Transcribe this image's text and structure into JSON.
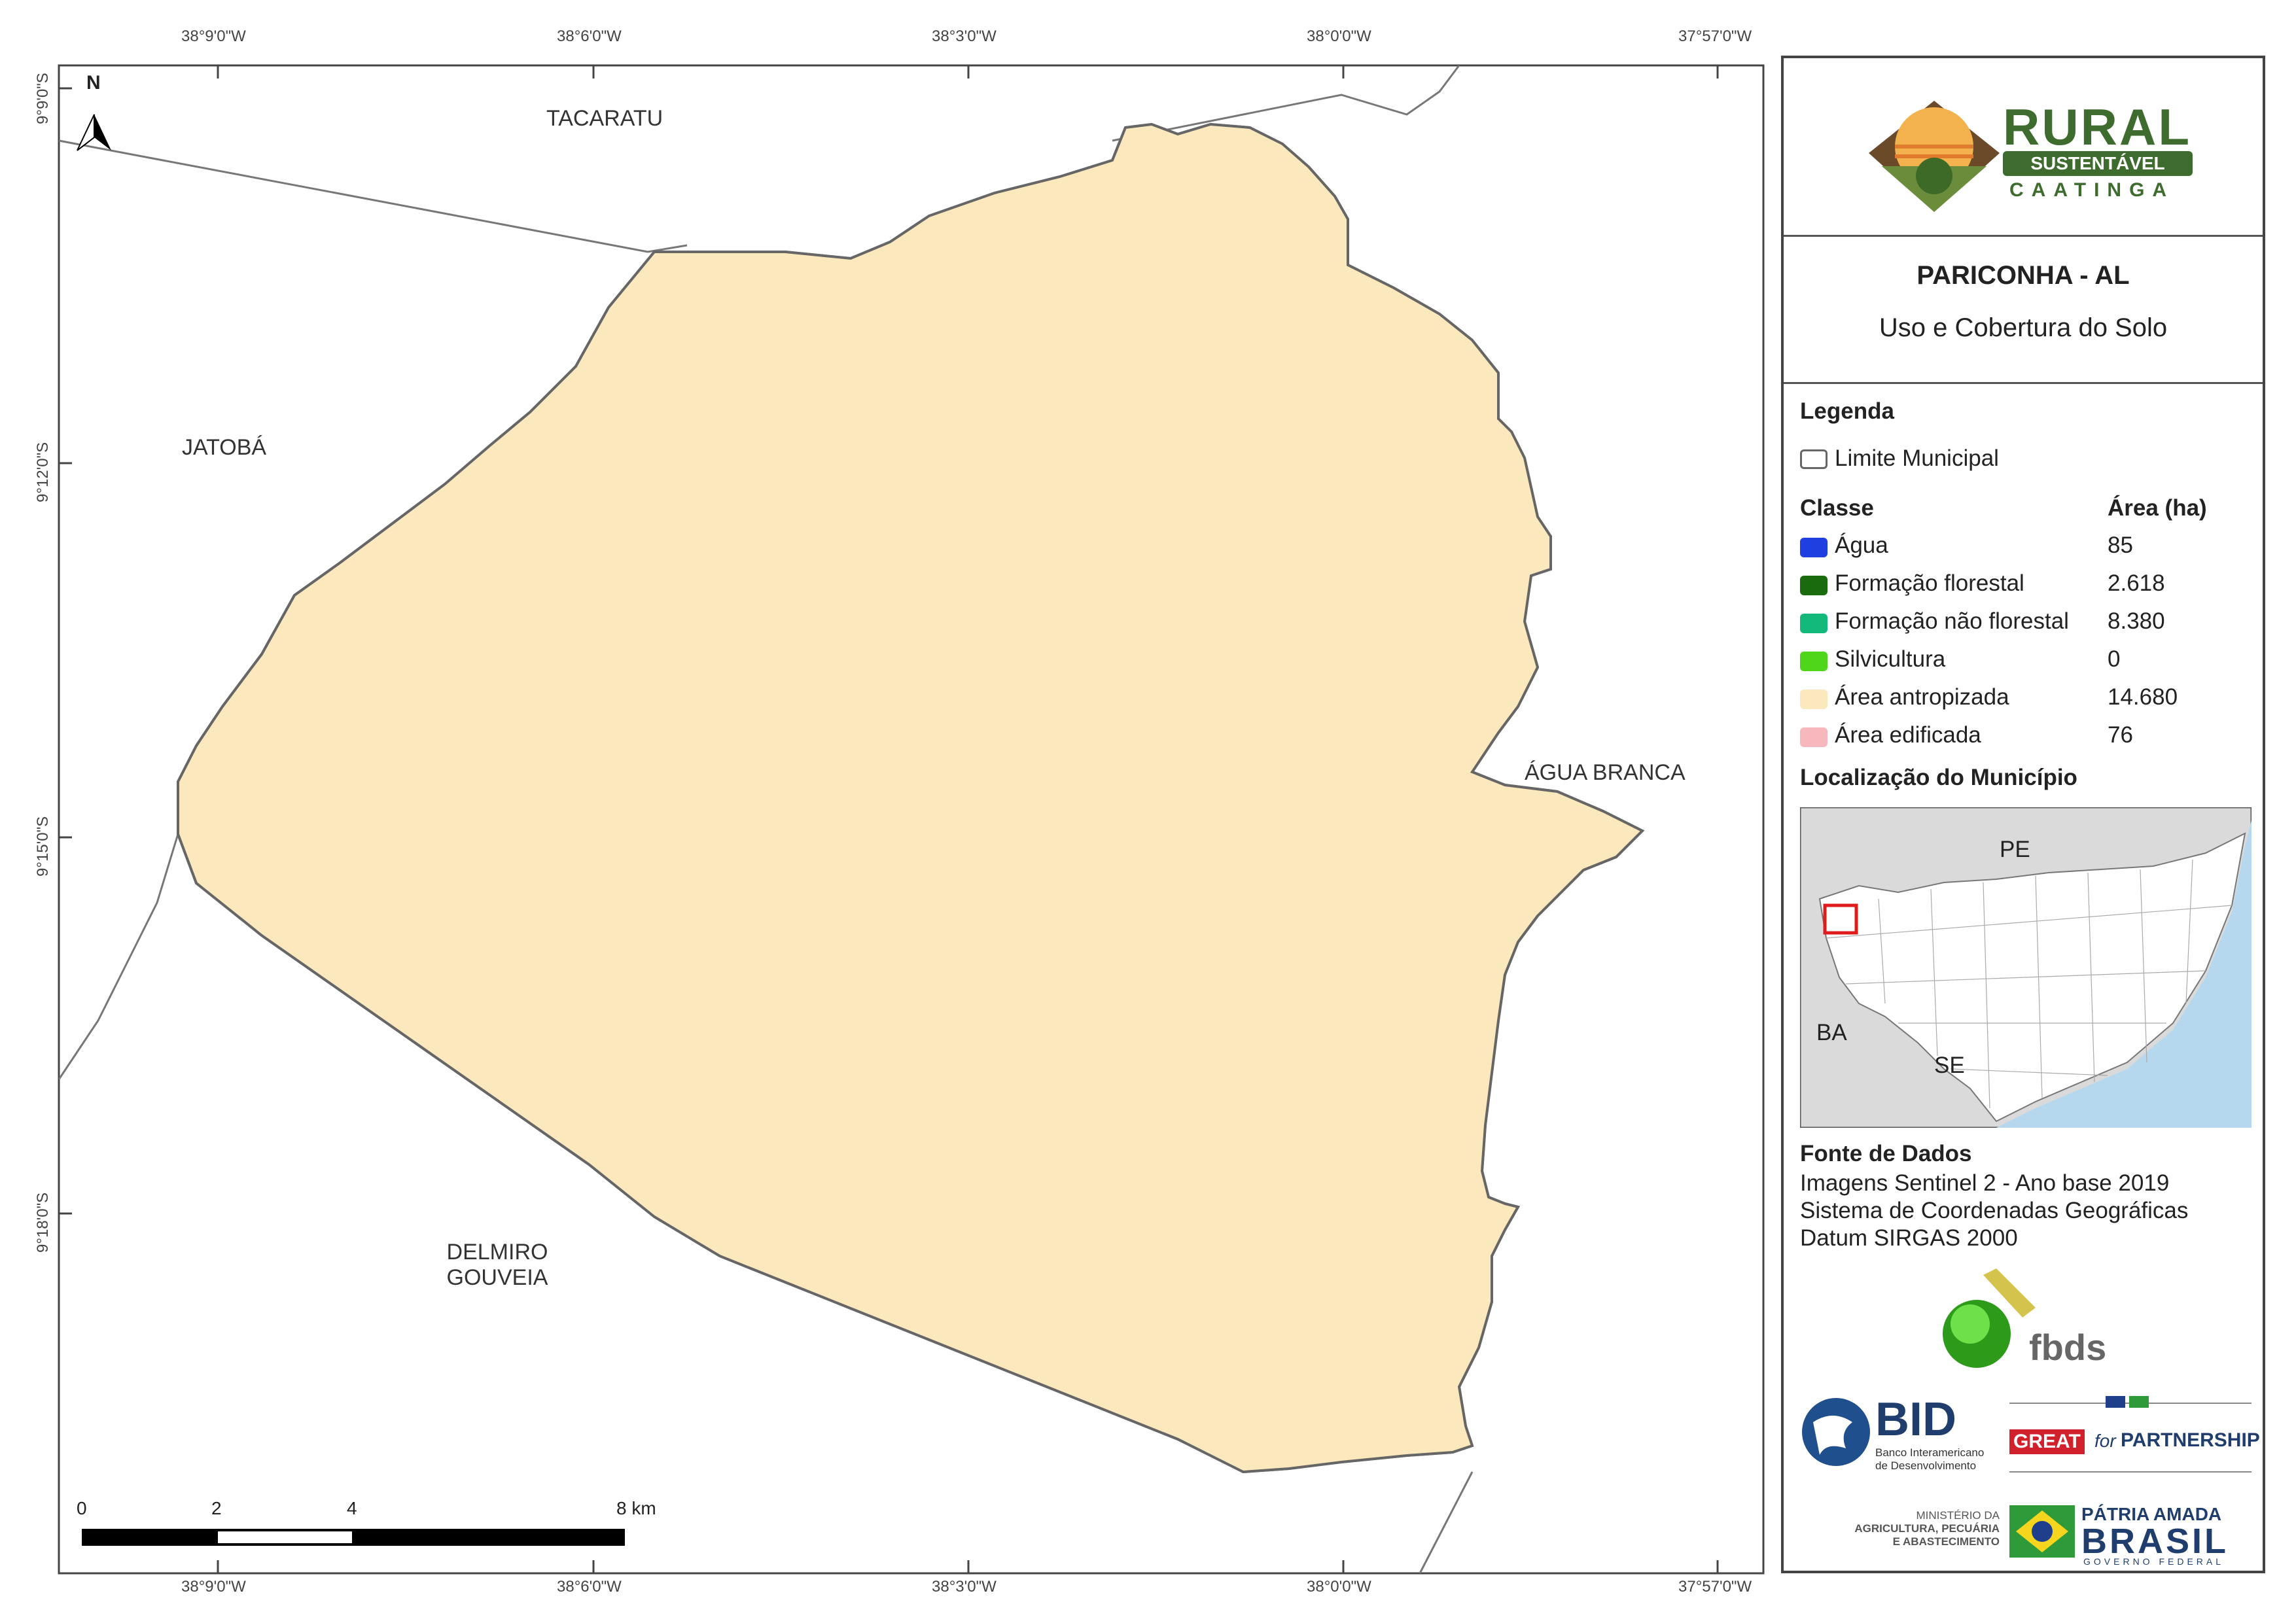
{
  "coordinates": {
    "top_lon": [
      "38°9'0\"W",
      "38°6'0\"W",
      "38°3'0\"W",
      "38°0'0\"W",
      "37°57'0\"W"
    ],
    "bottom_lon": [
      "38°9'0\"W",
      "38°6'0\"W",
      "38°3'0\"W",
      "38°0'0\"W",
      "37°57'0\"W"
    ],
    "left_lat": [
      "9°9'0\"S",
      "9°12'0\"S",
      "9°15'0\"S",
      "9°18'0\"S"
    ]
  },
  "places": {
    "tacaratu": "TACARATU",
    "jatoba": "JATOBÁ",
    "agua_branca": "ÁGUA BRANCA",
    "delmiro_1": "DELMIRO",
    "delmiro_2": "GOUVEIA"
  },
  "north_label": "N",
  "scale_bar": {
    "labels": [
      "0",
      "2",
      "4",
      "8 km"
    ]
  },
  "logo": {
    "rural": "RURAL",
    "sustentavel": "SUSTENTÁVEL",
    "caatinga": "CAATINGA"
  },
  "title": {
    "municipality": "PARICONHA - AL",
    "subtitle": "Uso e Cobertura do Solo"
  },
  "legend": {
    "heading": "Legenda",
    "limit_label": "Limite Municipal",
    "class_header": "Classe",
    "area_header": "Área (ha)",
    "classes": [
      {
        "name": "Água",
        "area": "85",
        "color": "#1f3fe0"
      },
      {
        "name": "Formação florestal",
        "area": "2.618",
        "color": "#1a6b0d"
      },
      {
        "name": "Formação não florestal",
        "area": "8.380",
        "color": "#12b97a"
      },
      {
        "name": "Silvicultura",
        "area": "0",
        "color": "#4fd61a"
      },
      {
        "name": "Área antropizada",
        "area": "14.680",
        "color": "#fbe8bd"
      },
      {
        "name": "Área edificada",
        "area": "76",
        "color": "#f6b8bd"
      }
    ]
  },
  "location": {
    "heading": "Localização do Município",
    "labels": {
      "pe": "PE",
      "ba": "BA",
      "se": "SE"
    }
  },
  "sources": {
    "heading": "Fonte de Dados",
    "lines": [
      "Imagens Sentinel 2 - Ano base 2019",
      "Sistema de Coordenadas Geográficas",
      "Datum SIRGAS 2000"
    ]
  },
  "partners": {
    "fbds": "fbds",
    "bid": "BID",
    "bid_sub_1": "Banco Interamericano",
    "bid_sub_2": "de Desenvolvimento",
    "great": "GREAT",
    "great_for": "for",
    "partnership": "PARTNERSHIP",
    "min_1": "MINISTÉRIO DA",
    "min_2": "AGRICULTURA, PECUÁRIA",
    "min_3": "E ABASTECIMENTO",
    "patria": "PÁTRIA AMADA",
    "brasil": "BRASIL",
    "gov": "GOVERNO FEDERAL"
  }
}
